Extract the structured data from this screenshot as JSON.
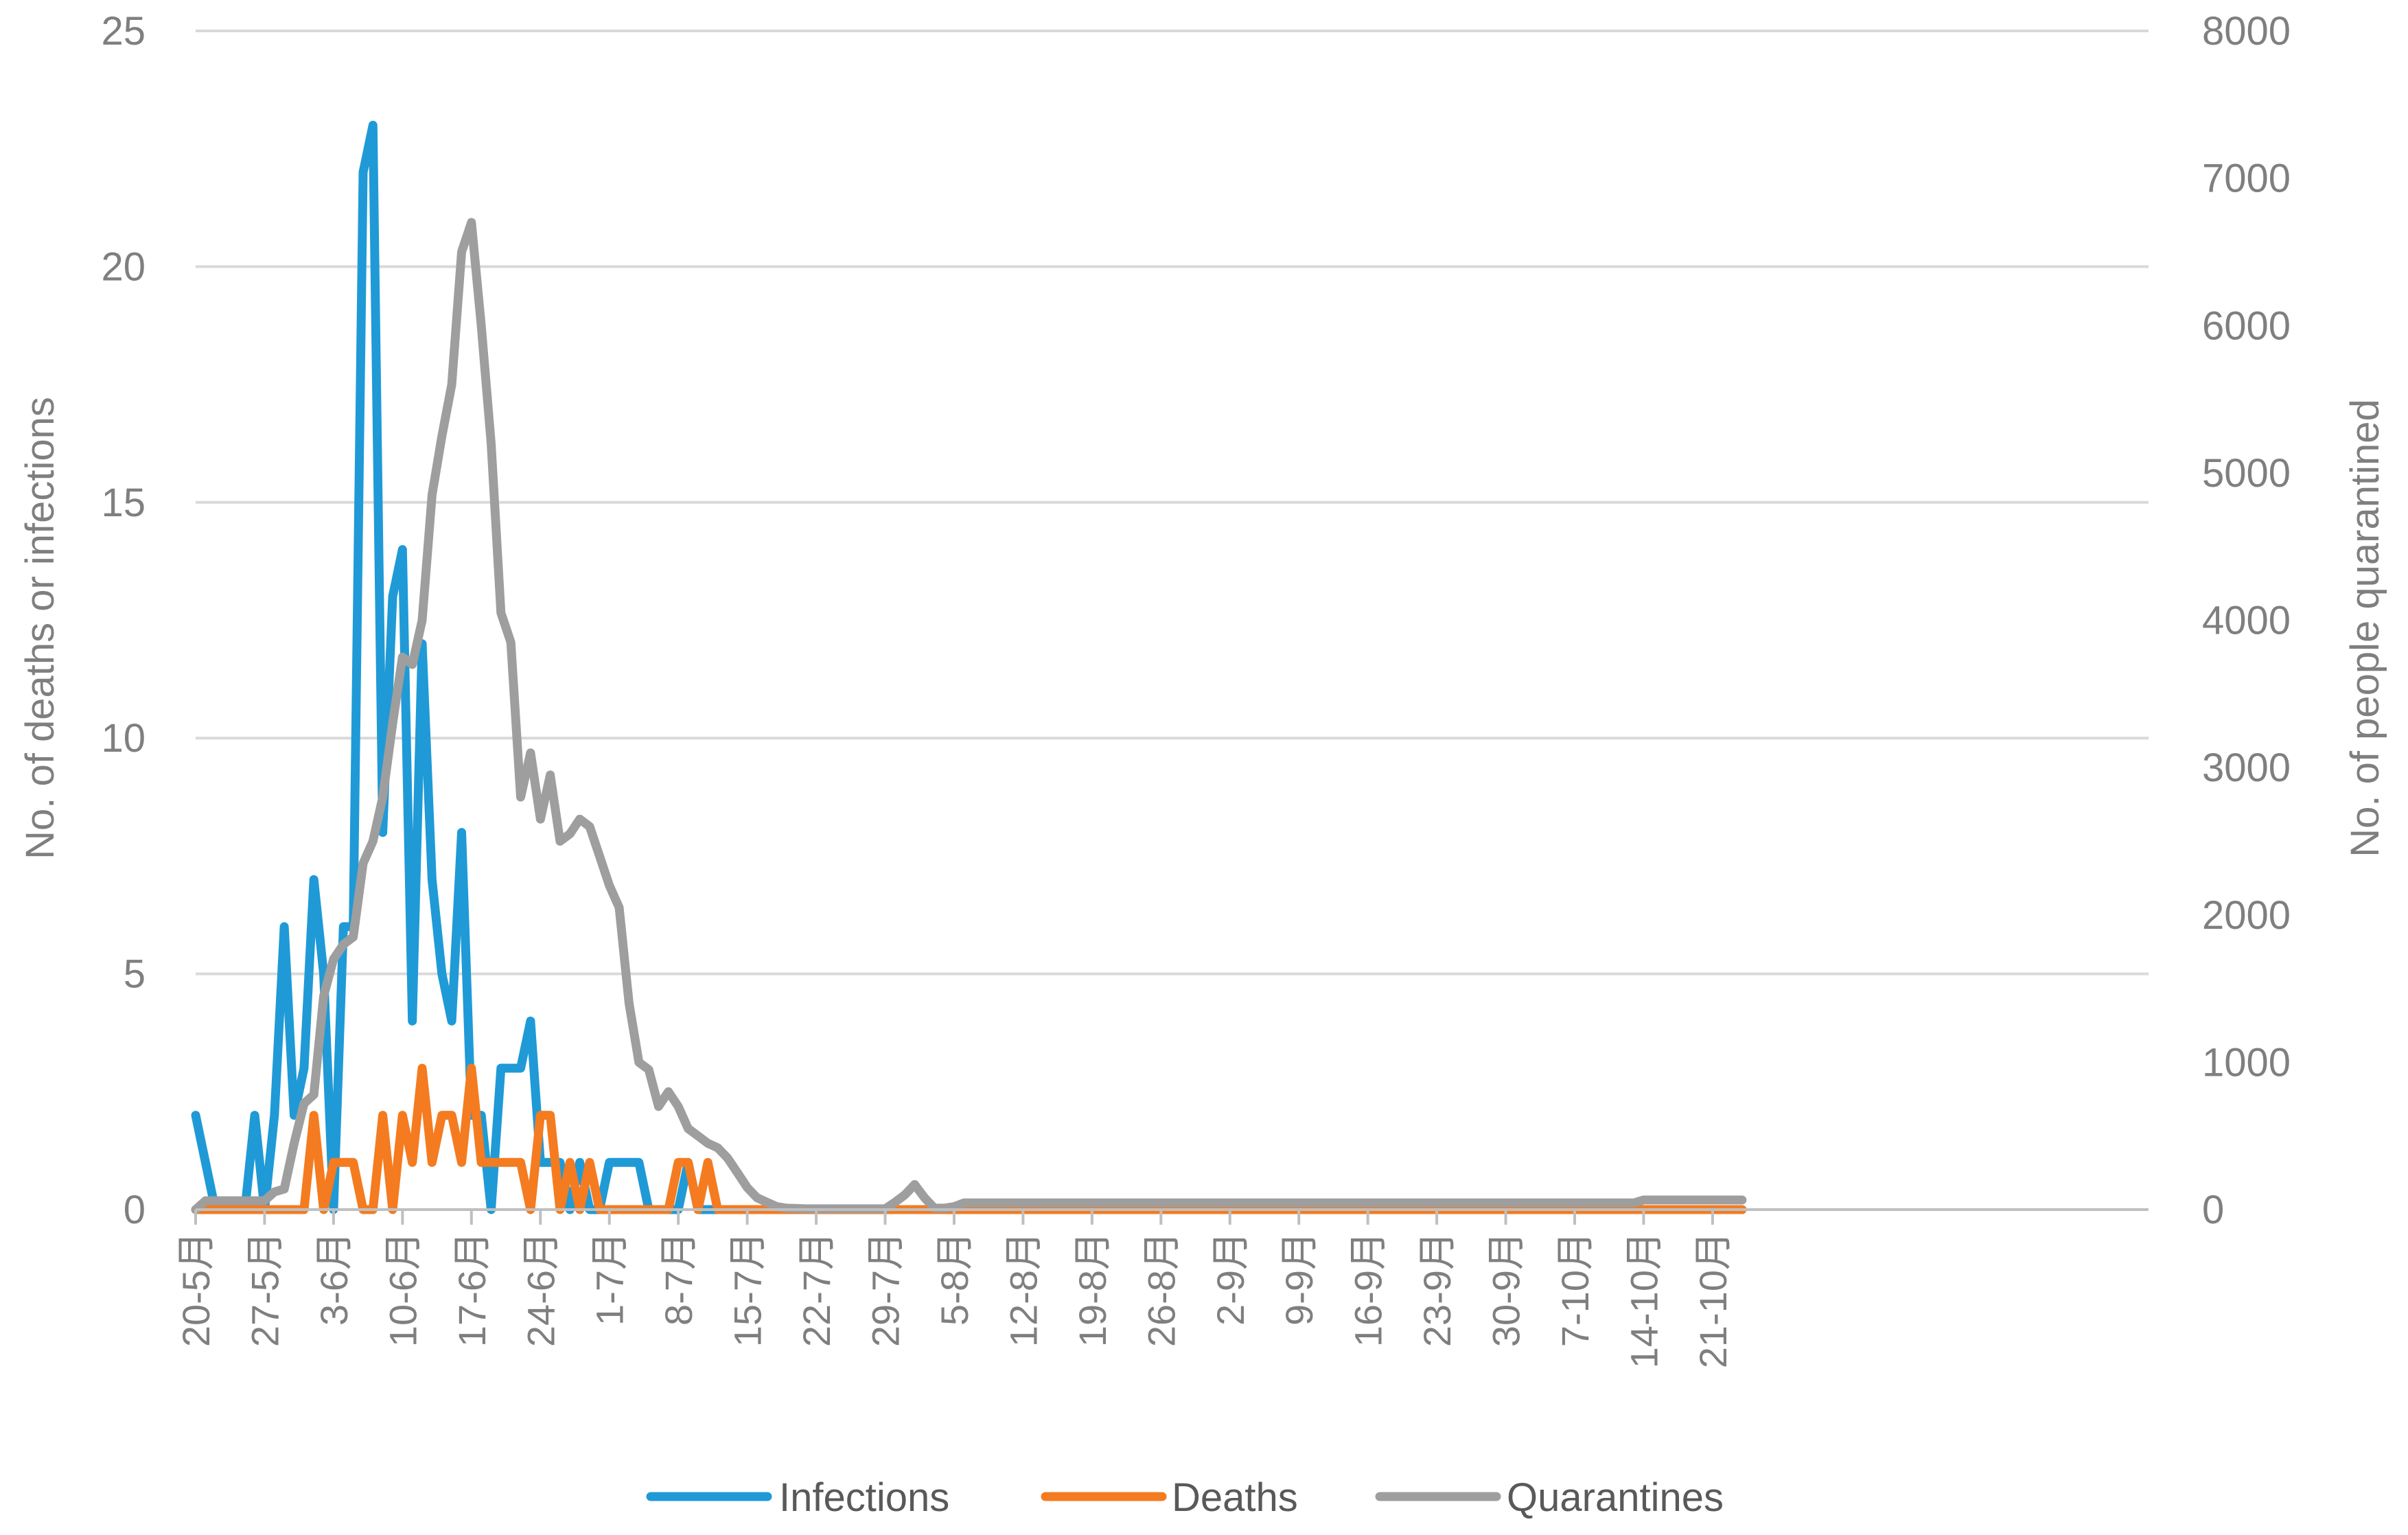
{
  "chart_data": {
    "type": "line",
    "title": "",
    "y_left_label": "No. of deaths or infections",
    "y_right_label": "No. of people quarantined",
    "y_left_range": [
      0,
      25
    ],
    "y_left_ticks": [
      "0",
      "5",
      "10",
      "15",
      "20",
      "25"
    ],
    "y_right_range": [
      0,
      8000
    ],
    "y_right_ticks": [
      "0",
      "1000",
      "2000",
      "3000",
      "4000",
      "5000",
      "6000",
      "7000",
      "8000"
    ],
    "x_range": [
      0,
      157
    ],
    "x_ticks": [
      "20-5月",
      "27-5月",
      "3-6月",
      "10-6月",
      "17-6月",
      "24-6月",
      "1-7月",
      "8-7月",
      "15-7月",
      "22-7月",
      "29-7月",
      "5-8月",
      "12-8月",
      "19-8月",
      "26-8月",
      "2-9月",
      "9-9月",
      "16-9月",
      "23-9月",
      "30-9月",
      "7-10月",
      "14-10月",
      "21-10月"
    ],
    "x_tick_days": [
      0,
      7,
      14,
      21,
      28,
      35,
      42,
      49,
      56,
      63,
      70,
      77,
      84,
      91,
      98,
      105,
      112,
      119,
      126,
      133,
      140,
      147,
      154
    ],
    "grid": true,
    "legend_position": "bottom",
    "series": [
      {
        "name": "Infections",
        "axis": "left",
        "color": "#1f9ad6",
        "points": [
          [
            0,
            2
          ],
          [
            2,
            0
          ],
          [
            5,
            0
          ],
          [
            6,
            2
          ],
          [
            7,
            0
          ],
          [
            8,
            2
          ],
          [
            9,
            6
          ],
          [
            10,
            2
          ],
          [
            11,
            3
          ],
          [
            12,
            7
          ],
          [
            13,
            5
          ],
          [
            14,
            0
          ],
          [
            15,
            6
          ],
          [
            16,
            6
          ],
          [
            17,
            22
          ],
          [
            18,
            23
          ],
          [
            19,
            8
          ],
          [
            20,
            13
          ],
          [
            21,
            14
          ],
          [
            22,
            4
          ],
          [
            23,
            12
          ],
          [
            24,
            7
          ],
          [
            25,
            5
          ],
          [
            26,
            4
          ],
          [
            27,
            8
          ],
          [
            28,
            2
          ],
          [
            29,
            2
          ],
          [
            30,
            0
          ],
          [
            31,
            3
          ],
          [
            32,
            3
          ],
          [
            33,
            3
          ],
          [
            34,
            4
          ],
          [
            35,
            1
          ],
          [
            36,
            1
          ],
          [
            37,
            1
          ],
          [
            38,
            0
          ],
          [
            39,
            1
          ],
          [
            40,
            0
          ],
          [
            41,
            0
          ],
          [
            42,
            1
          ],
          [
            43,
            1
          ],
          [
            44,
            1
          ],
          [
            45,
            1
          ],
          [
            46,
            0
          ],
          [
            49,
            0
          ],
          [
            50,
            1
          ],
          [
            51,
            0
          ],
          [
            52,
            0
          ],
          [
            53,
            0
          ],
          [
            157,
            0
          ]
        ]
      },
      {
        "name": "Deaths",
        "axis": "left",
        "color": "#f47b20",
        "points": [
          [
            0,
            0
          ],
          [
            11,
            0
          ],
          [
            12,
            2
          ],
          [
            13,
            0
          ],
          [
            14,
            1
          ],
          [
            16,
            1
          ],
          [
            17,
            0
          ],
          [
            18,
            0
          ],
          [
            19,
            2
          ],
          [
            20,
            0
          ],
          [
            21,
            2
          ],
          [
            22,
            1
          ],
          [
            23,
            3
          ],
          [
            24,
            1
          ],
          [
            25,
            2
          ],
          [
            26,
            2
          ],
          [
            27,
            1
          ],
          [
            28,
            3
          ],
          [
            29,
            1
          ],
          [
            30,
            1
          ],
          [
            33,
            1
          ],
          [
            34,
            0
          ],
          [
            35,
            2
          ],
          [
            36,
            2
          ],
          [
            37,
            0
          ],
          [
            38,
            1
          ],
          [
            39,
            0
          ],
          [
            40,
            1
          ],
          [
            41,
            0
          ],
          [
            48,
            0
          ],
          [
            49,
            1
          ],
          [
            50,
            1
          ],
          [
            51,
            0
          ],
          [
            52,
            1
          ],
          [
            53,
            0
          ],
          [
            157,
            0
          ]
        ]
      },
      {
        "name": "Quarantines",
        "axis": "right",
        "color": "#9e9e9e",
        "points": [
          [
            0,
            0
          ],
          [
            1,
            60
          ],
          [
            5,
            60
          ],
          [
            7,
            60
          ],
          [
            8,
            120
          ],
          [
            9,
            140
          ],
          [
            10,
            450
          ],
          [
            11,
            720
          ],
          [
            12,
            780
          ],
          [
            13,
            1450
          ],
          [
            14,
            1700
          ],
          [
            15,
            1800
          ],
          [
            16,
            1850
          ],
          [
            17,
            2350
          ],
          [
            18,
            2500
          ],
          [
            19,
            2800
          ],
          [
            20,
            3300
          ],
          [
            21,
            3750
          ],
          [
            22,
            3700
          ],
          [
            23,
            4000
          ],
          [
            24,
            4850
          ],
          [
            25,
            5250
          ],
          [
            26,
            5600
          ],
          [
            27,
            6500
          ],
          [
            28,
            6700
          ],
          [
            29,
            6000
          ],
          [
            30,
            5200
          ],
          [
            31,
            4050
          ],
          [
            32,
            3850
          ],
          [
            33,
            2800
          ],
          [
            34,
            3100
          ],
          [
            35,
            2650
          ],
          [
            36,
            2950
          ],
          [
            37,
            2500
          ],
          [
            38,
            2550
          ],
          [
            39,
            2650
          ],
          [
            40,
            2600
          ],
          [
            41,
            2400
          ],
          [
            42,
            2200
          ],
          [
            43,
            2050
          ],
          [
            44,
            1400
          ],
          [
            45,
            1000
          ],
          [
            46,
            950
          ],
          [
            47,
            700
          ],
          [
            48,
            800
          ],
          [
            49,
            700
          ],
          [
            50,
            550
          ],
          [
            51,
            500
          ],
          [
            52,
            450
          ],
          [
            53,
            420
          ],
          [
            54,
            350
          ],
          [
            55,
            250
          ],
          [
            56,
            150
          ],
          [
            57,
            80
          ],
          [
            58,
            50
          ],
          [
            59,
            20
          ],
          [
            60,
            10
          ],
          [
            62,
            5
          ],
          [
            70,
            5
          ],
          [
            71,
            50
          ],
          [
            72,
            100
          ],
          [
            73,
            170
          ],
          [
            74,
            80
          ],
          [
            75,
            10
          ],
          [
            76,
            10
          ],
          [
            77,
            20
          ],
          [
            78,
            45
          ],
          [
            146,
            45
          ],
          [
            147,
            65
          ],
          [
            157,
            65
          ]
        ]
      }
    ]
  }
}
